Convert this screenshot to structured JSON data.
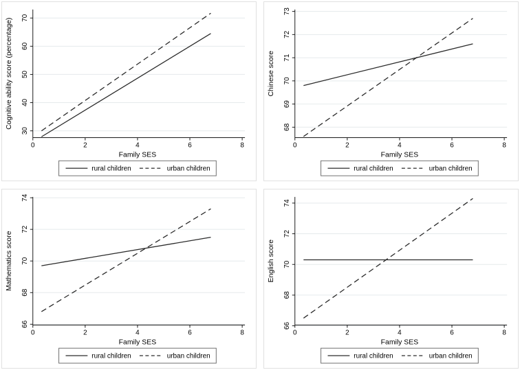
{
  "figure": {
    "panels": [
      {
        "id": 0,
        "name": "cognitive-ability-chart"
      },
      {
        "id": 1,
        "name": "chinese-score-chart"
      },
      {
        "id": 2,
        "name": "mathematics-score-chart"
      },
      {
        "id": 3,
        "name": "english-score-chart"
      }
    ]
  },
  "chart_data": [
    {
      "type": "line",
      "ylabel": "Cognitive ability score (percentage)",
      "xlabel": "Family SES",
      "xticks": [
        0,
        2,
        4,
        6,
        8
      ],
      "yticks": [
        30,
        40,
        50,
        60,
        70
      ],
      "xlim": [
        0,
        8
      ],
      "ylim": [
        27.6,
        73.0
      ],
      "x": [
        0.33,
        6.8
      ],
      "grid": "horizontal",
      "legend_position": "bottom",
      "series": [
        {
          "name": "rural children",
          "line_style": "solid",
          "values": [
            27.9,
            64.5
          ]
        },
        {
          "name": "urban children",
          "line_style": "dashed",
          "values": [
            30.0,
            71.7
          ]
        }
      ]
    },
    {
      "type": "line",
      "ylabel": "Chinese score",
      "xlabel": "Family SES",
      "xticks": [
        0,
        2,
        4,
        6,
        8
      ],
      "yticks": [
        68,
        69,
        70,
        71,
        72,
        73
      ],
      "xlim": [
        0,
        8
      ],
      "ylim": [
        67.55,
        73.08
      ],
      "x": [
        0.33,
        6.8
      ],
      "grid": "horizontal",
      "legend_position": "bottom",
      "series": [
        {
          "name": "rural children",
          "line_style": "solid",
          "values": [
            69.8,
            71.6
          ]
        },
        {
          "name": "urban children",
          "line_style": "dashed",
          "values": [
            67.6,
            72.7
          ]
        }
      ]
    },
    {
      "type": "line",
      "ylabel": "Mathematics score",
      "xlabel": "Family SES",
      "xticks": [
        0,
        2,
        4,
        6,
        8
      ],
      "yticks": [
        66,
        68,
        70,
        72,
        74
      ],
      "xlim": [
        0,
        8
      ],
      "ylim": [
        65.95,
        74.05
      ],
      "x": [
        0.33,
        6.8
      ],
      "grid": "horizontal",
      "legend_position": "bottom",
      "series": [
        {
          "name": "rural children",
          "line_style": "solid",
          "values": [
            69.7,
            71.5
          ]
        },
        {
          "name": "urban children",
          "line_style": "dashed",
          "values": [
            66.8,
            73.3
          ]
        }
      ]
    },
    {
      "type": "line",
      "ylabel": "English score",
      "xlabel": "Family SES",
      "xticks": [
        0,
        2,
        4,
        6,
        8
      ],
      "yticks": [
        66,
        68,
        70,
        72,
        74
      ],
      "xlim": [
        0,
        8
      ],
      "ylim": [
        66.05,
        74.4
      ],
      "x": [
        0.33,
        6.8
      ],
      "grid": "horizontal",
      "legend_position": "bottom",
      "series": [
        {
          "name": "rural children",
          "line_style": "solid",
          "values": [
            70.3,
            70.3
          ]
        },
        {
          "name": "urban children",
          "line_style": "dashed",
          "values": [
            66.5,
            74.3
          ]
        }
      ]
    }
  ],
  "legend": {
    "items": [
      {
        "label": "rural children",
        "style": "solid"
      },
      {
        "label": "urban children",
        "style": "dashed"
      }
    ]
  },
  "colors": {
    "line": "#2a2a2a",
    "axis": "#1a1a1a",
    "grid": "#e5eaec",
    "text": "#000000",
    "legend_border": "#6f6f6f",
    "panel_border": "#e0e0e0",
    "background": "#ffffff"
  }
}
